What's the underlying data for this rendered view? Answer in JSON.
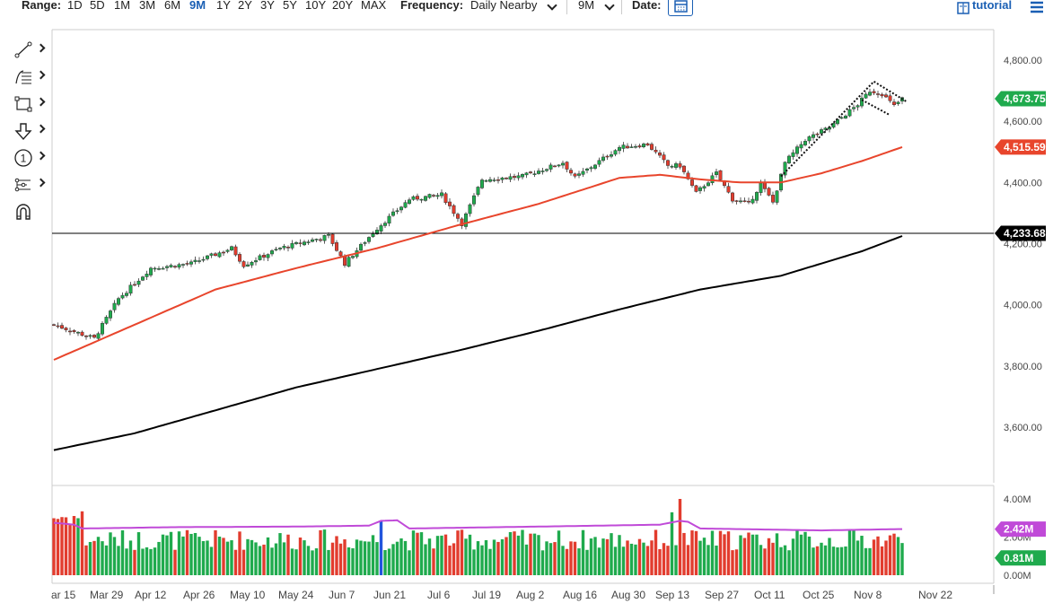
{
  "topbar": {
    "range_label": "Range:",
    "ranges": [
      "1D",
      "5D",
      "1M",
      "3M",
      "6M",
      "9M",
      "1Y",
      "2Y",
      "3Y",
      "5Y",
      "10Y",
      "20Y",
      "MAX"
    ],
    "active_range": "9M",
    "frequency_label": "Frequency:",
    "frequency_value": "Daily Nearby",
    "period_value": "9M",
    "date_label": "Date:",
    "tutorial_label": "tutorial"
  },
  "colors": {
    "up": "#1faa4d",
    "down": "#e23c2e",
    "ma_short": "#e8452c",
    "ma_long": "#000000",
    "vol_avg": "#c04ad8",
    "accent": "#1a5fb4"
  },
  "tools": [
    "line-tool-icon",
    "fib-tool-icon",
    "rectangle-tool-icon",
    "arrow-tool-icon",
    "annotation-tool-icon",
    "pattern-tool-icon",
    "magnet-tool-icon"
  ],
  "chart_data": {
    "type": "candlestick",
    "price_axis": {
      "ticks": [
        "4,800.00",
        "4,600.00",
        "4,400.00",
        "4,200.00",
        "4,000.00",
        "3,800.00",
        "3,600.00"
      ],
      "tick_values": [
        4800,
        4600,
        4400,
        4200,
        4000,
        3800,
        3600
      ]
    },
    "badges": {
      "last": "4,673.75",
      "ma_short": "4,515.59",
      "line": "4,233.68"
    },
    "volume_axis": {
      "ticks": [
        "4.00M",
        "2.00M",
        "0.00M"
      ],
      "tick_values": [
        4,
        2,
        0
      ]
    },
    "volume_badges": {
      "avg": "2.42M",
      "last": "0.81M"
    },
    "x_labels": [
      "ar 15",
      "Mar 29",
      "Apr 12",
      "Apr 26",
      "May 10",
      "May 24",
      "Jun 7",
      "Jun 21",
      "Jul 6",
      "Jul 19",
      "Aug 2",
      "Aug 16",
      "Aug 30",
      "Sep 13",
      "Sep 27",
      "Oct 11",
      "Oct 25",
      "Nov 8",
      "Nov 22"
    ],
    "close_anchors": [
      {
        "d": 0,
        "v": 3935
      },
      {
        "d": 10,
        "v": 3890
      },
      {
        "d": 16,
        "v": 4020
      },
      {
        "d": 24,
        "v": 4120
      },
      {
        "d": 34,
        "v": 4135
      },
      {
        "d": 44,
        "v": 4185
      },
      {
        "d": 47,
        "v": 4130
      },
      {
        "d": 56,
        "v": 4185
      },
      {
        "d": 68,
        "v": 4225
      },
      {
        "d": 72,
        "v": 4135
      },
      {
        "d": 80,
        "v": 4250
      },
      {
        "d": 88,
        "v": 4345
      },
      {
        "d": 96,
        "v": 4360
      },
      {
        "d": 101,
        "v": 4265
      },
      {
        "d": 106,
        "v": 4410
      },
      {
        "d": 116,
        "v": 4420
      },
      {
        "d": 126,
        "v": 4465
      },
      {
        "d": 129,
        "v": 4415
      },
      {
        "d": 134,
        "v": 4460
      },
      {
        "d": 140,
        "v": 4515
      },
      {
        "d": 147,
        "v": 4525
      },
      {
        "d": 152,
        "v": 4455
      },
      {
        "d": 155,
        "v": 4455
      },
      {
        "d": 159,
        "v": 4365
      },
      {
        "d": 164,
        "v": 4430
      },
      {
        "d": 168,
        "v": 4345
      },
      {
        "d": 172,
        "v": 4330
      },
      {
        "d": 175,
        "v": 4395
      },
      {
        "d": 178,
        "v": 4335
      },
      {
        "d": 181,
        "v": 4465
      },
      {
        "d": 186,
        "v": 4540
      },
      {
        "d": 192,
        "v": 4580
      },
      {
        "d": 199,
        "v": 4655
      },
      {
        "d": 202,
        "v": 4700
      },
      {
        "d": 205,
        "v": 4690
      },
      {
        "d": 208,
        "v": 4650
      },
      {
        "d": 210,
        "v": 4673.75
      }
    ],
    "ma_short_anchors": [
      {
        "d": 0,
        "v": 3820
      },
      {
        "d": 20,
        "v": 3935
      },
      {
        "d": 40,
        "v": 4050
      },
      {
        "d": 60,
        "v": 4120
      },
      {
        "d": 80,
        "v": 4185
      },
      {
        "d": 100,
        "v": 4260
      },
      {
        "d": 120,
        "v": 4330
      },
      {
        "d": 140,
        "v": 4415
      },
      {
        "d": 150,
        "v": 4425
      },
      {
        "d": 160,
        "v": 4410
      },
      {
        "d": 170,
        "v": 4400
      },
      {
        "d": 180,
        "v": 4400
      },
      {
        "d": 190,
        "v": 4430
      },
      {
        "d": 200,
        "v": 4470
      },
      {
        "d": 210,
        "v": 4515.59
      }
    ],
    "ma_long_anchors": [
      {
        "d": 0,
        "v": 3525
      },
      {
        "d": 20,
        "v": 3580
      },
      {
        "d": 40,
        "v": 3655
      },
      {
        "d": 60,
        "v": 3730
      },
      {
        "d": 80,
        "v": 3790
      },
      {
        "d": 100,
        "v": 3850
      },
      {
        "d": 120,
        "v": 3915
      },
      {
        "d": 140,
        "v": 3985
      },
      {
        "d": 160,
        "v": 4050
      },
      {
        "d": 180,
        "v": 4095
      },
      {
        "d": 200,
        "v": 4175
      },
      {
        "d": 210,
        "v": 4225
      }
    ],
    "horizontal_line": 4233.68,
    "channel_lines": [
      {
        "from": {
          "d": 180,
          "v": 4420
        },
        "to": {
          "d": 203,
          "v": 4730
        }
      },
      {
        "from": {
          "d": 203,
          "v": 4730
        },
        "to": {
          "d": 211,
          "v": 4665
        }
      },
      {
        "from": {
          "d": 200,
          "v": 4670
        },
        "to": {
          "d": 207,
          "v": 4620
        }
      }
    ],
    "volume_avg_anchors": [
      {
        "d": 0,
        "v": 2.75
      },
      {
        "d": 5,
        "v": 2.65
      },
      {
        "d": 7,
        "v": 2.45
      },
      {
        "d": 30,
        "v": 2.52
      },
      {
        "d": 60,
        "v": 2.55
      },
      {
        "d": 78,
        "v": 2.6
      },
      {
        "d": 81,
        "v": 2.85
      },
      {
        "d": 85,
        "v": 2.88
      },
      {
        "d": 88,
        "v": 2.45
      },
      {
        "d": 120,
        "v": 2.55
      },
      {
        "d": 150,
        "v": 2.65
      },
      {
        "d": 155,
        "v": 2.85
      },
      {
        "d": 157,
        "v": 2.8
      },
      {
        "d": 160,
        "v": 2.45
      },
      {
        "d": 175,
        "v": 2.4
      },
      {
        "d": 190,
        "v": 2.35
      },
      {
        "d": 210,
        "v": 2.42
      }
    ],
    "volume_spikes": [
      {
        "d": 81,
        "v": 2.85
      },
      {
        "d": 153,
        "v": 3.3
      },
      {
        "d": 155,
        "v": 4.0
      }
    ]
  }
}
